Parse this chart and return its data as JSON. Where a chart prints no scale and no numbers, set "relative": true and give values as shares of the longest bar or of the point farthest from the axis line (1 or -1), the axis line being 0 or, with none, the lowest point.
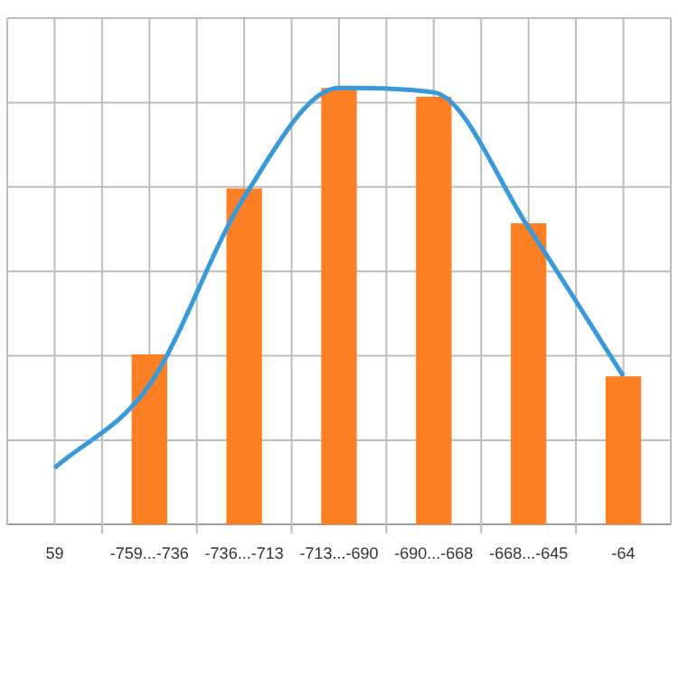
{
  "chart_data": {
    "type": "bar",
    "relative": true,
    "grid": true,
    "legend": false,
    "categories": [
      "59",
      "-759...-736",
      "-736...-713",
      "-713...-690",
      "-690...-668",
      "-668...-645",
      "-64"
    ],
    "series": [
      {
        "color": "#fd7f23",
        "values": [
          null,
          0.39,
          0.77,
          1,
          0.98,
          0.69,
          0.34
        ]
      },
      {
        "type": "line",
        "color": "#3a9ad9",
        "values": [
          0.13,
          0.32,
          0.75,
          1,
          0.99,
          0.68,
          0.34
        ]
      }
    ]
  }
}
